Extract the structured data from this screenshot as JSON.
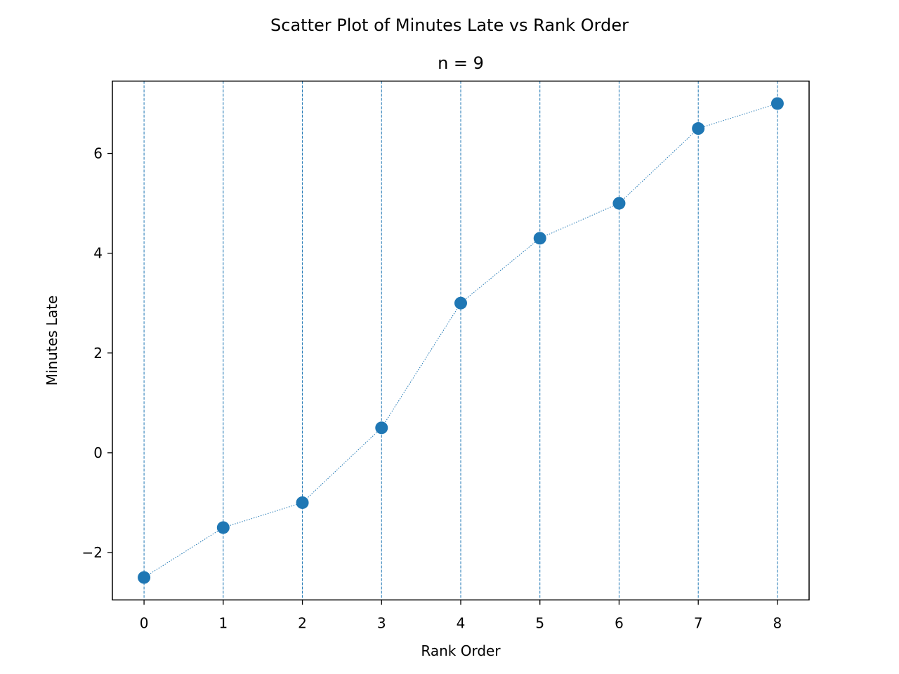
{
  "chart_data": {
    "type": "scatter",
    "title": "Scatter Plot of Minutes Late vs Rank Order",
    "subtitle": "n = 9",
    "xlabel": "Rank Order",
    "ylabel": "Minutes Late",
    "xlim": [
      -0.4,
      8.4
    ],
    "ylim": [
      -2.95,
      7.45
    ],
    "x_ticks": [
      0,
      1,
      2,
      3,
      4,
      5,
      6,
      7,
      8
    ],
    "y_ticks": [
      -2,
      0,
      2,
      4,
      6
    ],
    "y_tick_labels": [
      "−2",
      "0",
      "2",
      "4",
      "6"
    ],
    "grid": "vertical dashed lines at each rank",
    "legend": "none",
    "connecting_line": "dotted",
    "color": "#1f77b4",
    "series": [
      {
        "x": [
          0,
          1,
          2,
          3,
          4,
          5,
          6,
          7,
          8
        ],
        "y": [
          -2.5,
          -1.5,
          -1.0,
          0.5,
          3.0,
          4.3,
          5.0,
          6.5,
          7.0
        ]
      }
    ]
  }
}
